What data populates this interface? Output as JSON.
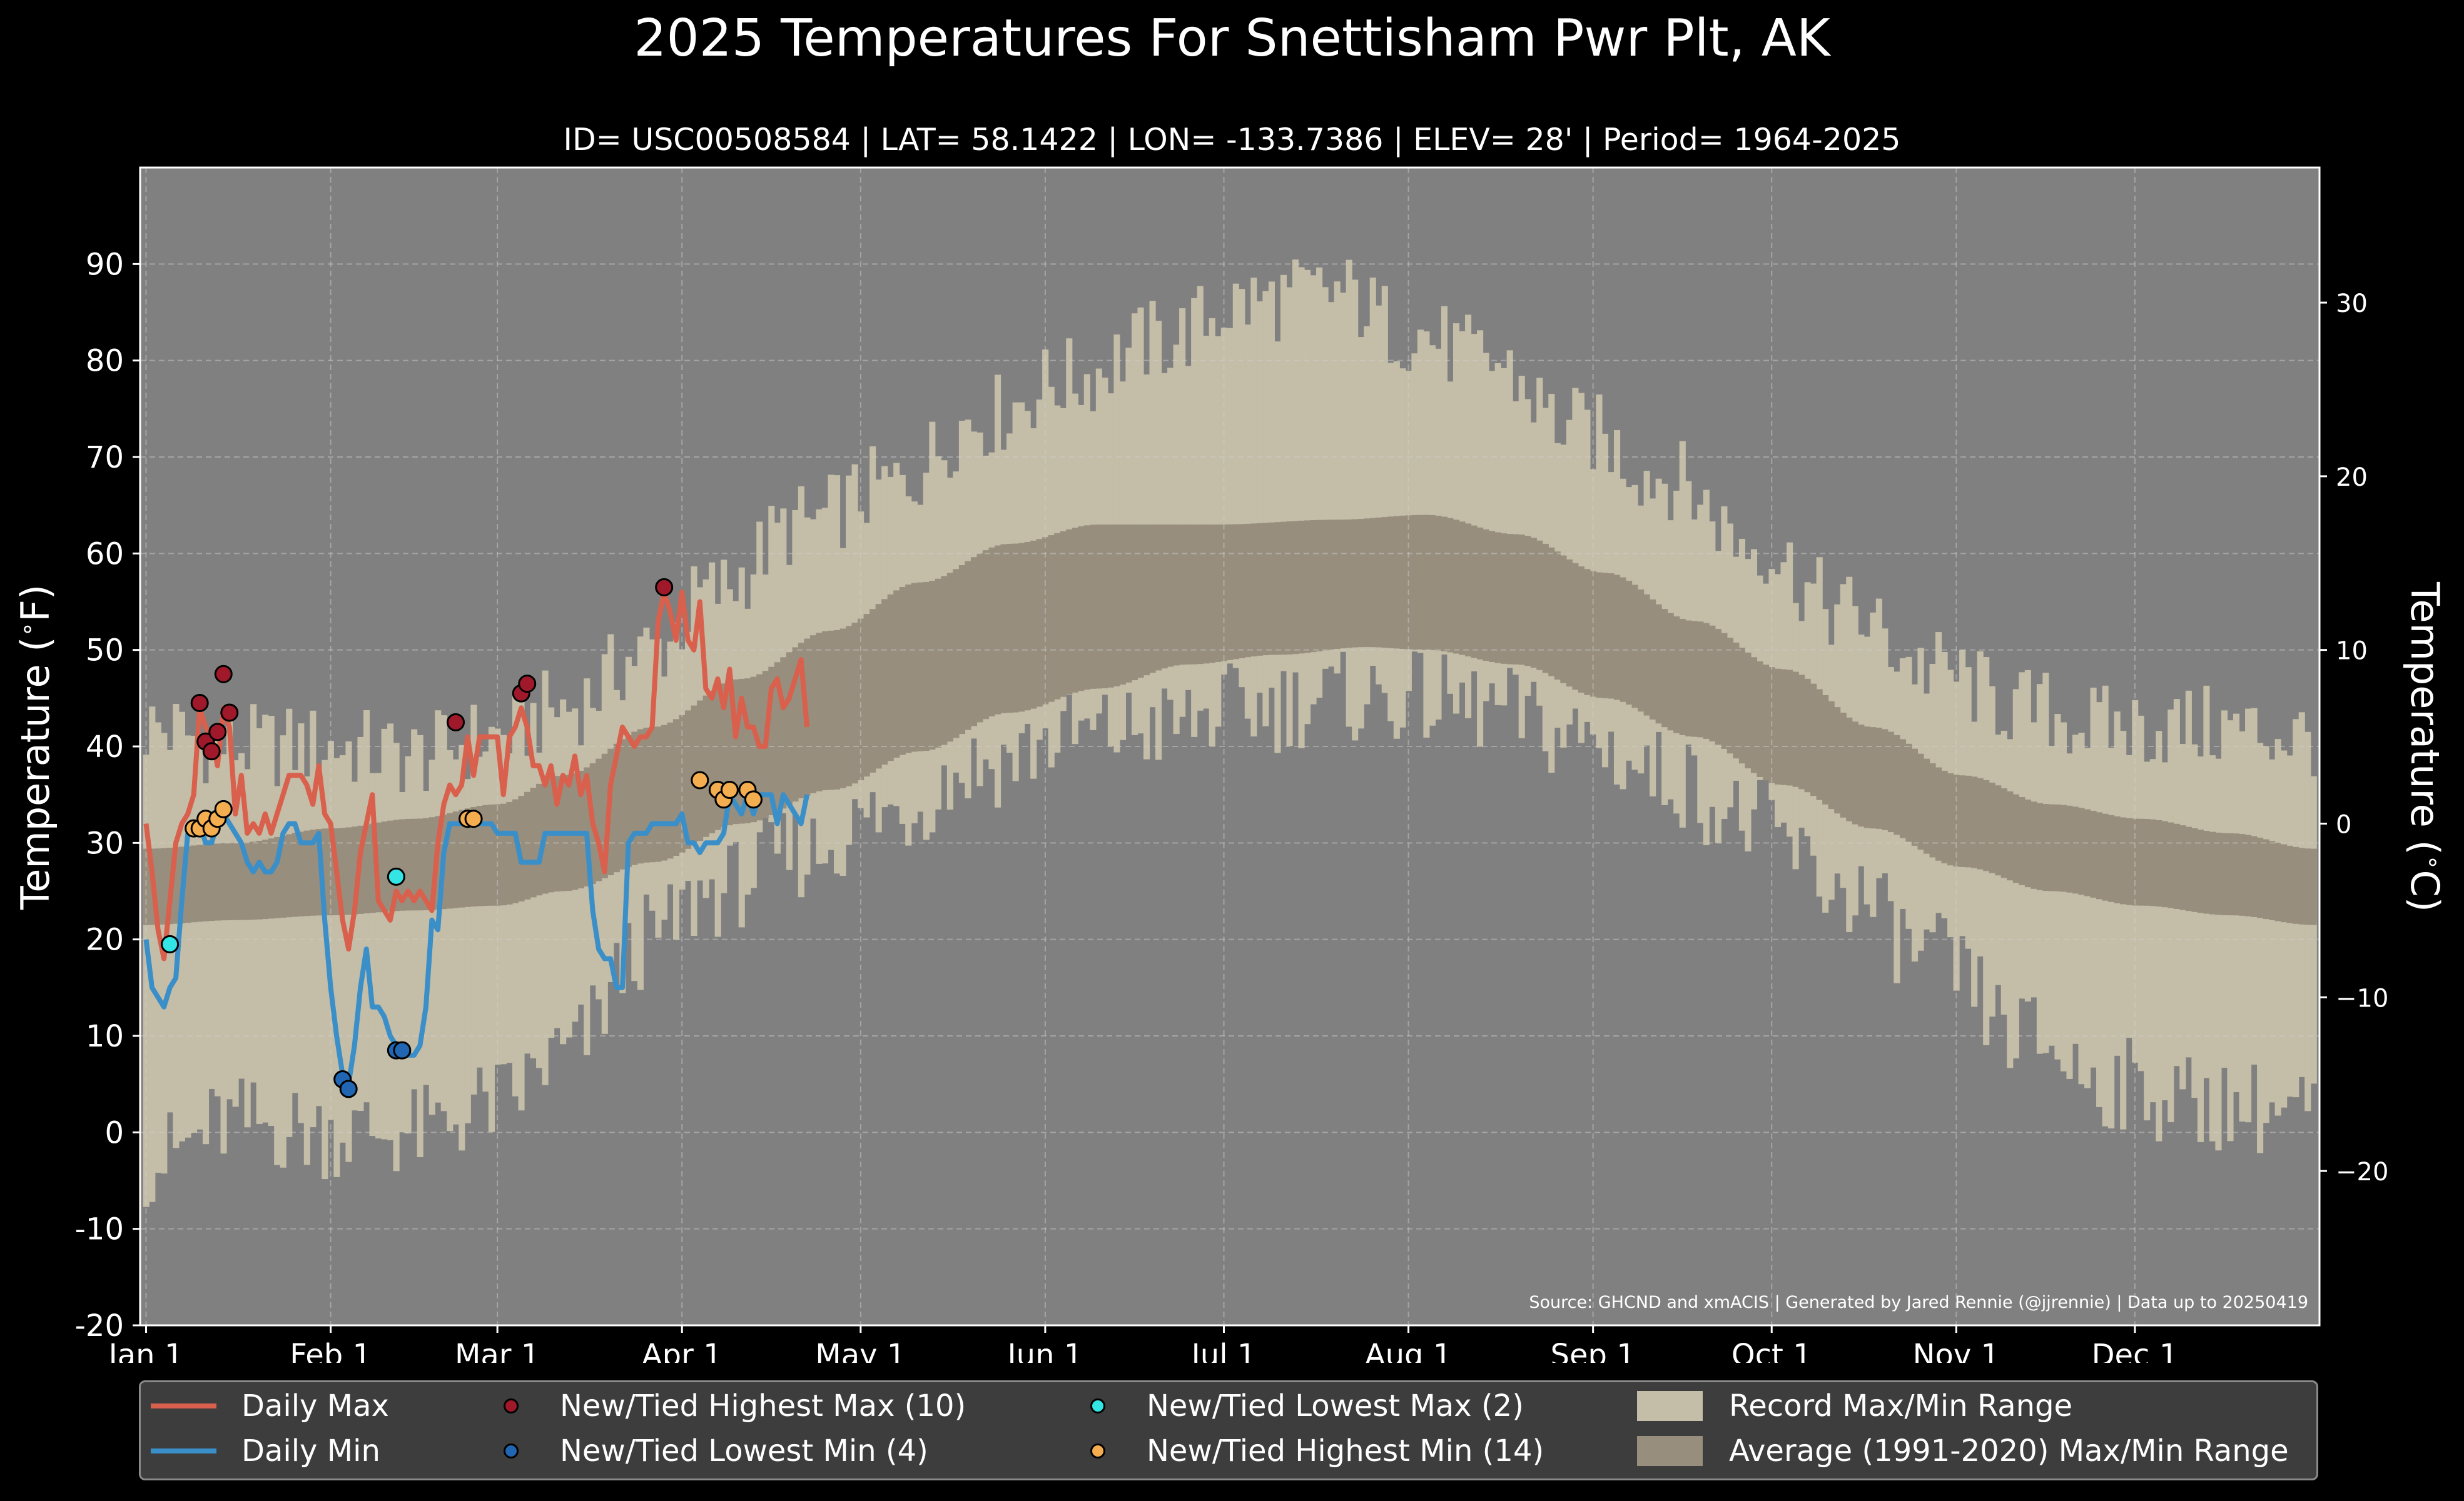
{
  "header": {
    "title": "2025 Temperatures For Snettisham Pwr Plt, AK",
    "subtitle": "ID= USC00508584 | LAT= 58.1422 | LON= -133.7386 | ELEV= 28' | Period= 1964-2025"
  },
  "source_note": "Source: GHCND and xmACIS | Generated by Jared Rennie (@jjrennie) | Data up to 20250419",
  "legend": {
    "daily_max": "Daily Max",
    "daily_min": "Daily Min",
    "highest_max": "New/Tied Highest Max (10)",
    "lowest_min": "New/Tied Lowest Min (4)",
    "lowest_max": "New/Tied Lowest Max (2)",
    "highest_min": "New/Tied Highest Min (14)",
    "record_range": "Record Max/Min Range",
    "average_range": "Average (1991-2020) Max/Min Range"
  },
  "colors": {
    "background": "#000000",
    "plot_bg": "#808080",
    "record_band": "#c4bda7",
    "average_band": "#978e7e",
    "daily_max": "#d9604c",
    "daily_min": "#3a8fc9",
    "highest_max": "#a0192b",
    "lowest_min": "#2066b3",
    "lowest_max": "#33e5e5",
    "highest_min": "#f5ae4f"
  },
  "chart_data": {
    "type": "line",
    "ylabel": "Temperature ($^\\circ$F)",
    "ylabel_right": "Temperature ($^\\circ$C)",
    "ylim": [
      -20,
      100
    ],
    "yticks": [
      -20,
      -10,
      0,
      10,
      20,
      30,
      40,
      50,
      60,
      70,
      80,
      90
    ],
    "y2ticks": [
      -20,
      -10,
      0,
      10,
      20,
      30
    ],
    "xlim": [
      -1,
      365
    ],
    "xticks": [
      {
        "day": 0,
        "label": "Jan 1"
      },
      {
        "day": 31,
        "label": "Feb 1"
      },
      {
        "day": 59,
        "label": "Mar 1"
      },
      {
        "day": 90,
        "label": "Apr 1"
      },
      {
        "day": 120,
        "label": "May 1"
      },
      {
        "day": 151,
        "label": "Jun 1"
      },
      {
        "day": 181,
        "label": "Jul 1"
      },
      {
        "day": 212,
        "label": "Aug 1"
      },
      {
        "day": 243,
        "label": "Sep 1"
      },
      {
        "day": 273,
        "label": "Oct 1"
      },
      {
        "day": 304,
        "label": "Nov 1"
      },
      {
        "day": 334,
        "label": "Dec 1"
      }
    ],
    "grid": true,
    "legend_position": "bottom",
    "series": [
      {
        "name": "Daily Max",
        "x_start": 0,
        "values": [
          32,
          27,
          21,
          18,
          24,
          30,
          32,
          33,
          35,
          44,
          42,
          41,
          38,
          44,
          42,
          33,
          37,
          31,
          32,
          31,
          33,
          31,
          33,
          35,
          37,
          37,
          37,
          36,
          34,
          38,
          33,
          32,
          27,
          22,
          19,
          23,
          29,
          32,
          35,
          24,
          23,
          22,
          25,
          24,
          25,
          24,
          25,
          24,
          23,
          30,
          34,
          36,
          35,
          36,
          41,
          37,
          41,
          41,
          41,
          41,
          35,
          41,
          42,
          44,
          42,
          38,
          38,
          36,
          38,
          34,
          37,
          36,
          39,
          35,
          37,
          32,
          30,
          27,
          36,
          39,
          42,
          41,
          40,
          41,
          41,
          42,
          53,
          56,
          54,
          51,
          56,
          51,
          50,
          55,
          46,
          45,
          47,
          44,
          48,
          41,
          45,
          42,
          42,
          40,
          40,
          46,
          47,
          44,
          45,
          47,
          49,
          42
        ]
      },
      {
        "name": "Daily Min",
        "x_start": 0,
        "values": [
          20,
          15,
          14,
          13,
          15,
          16,
          24,
          31,
          32,
          32,
          30,
          30,
          32,
          33,
          32,
          31,
          30,
          28,
          27,
          28,
          27,
          27,
          28,
          31,
          32,
          32,
          30,
          30,
          30,
          31,
          22,
          15,
          10,
          6,
          5,
          9,
          15,
          19,
          13,
          13,
          12,
          10,
          9,
          9,
          8,
          8,
          9,
          13,
          22,
          21,
          29,
          32,
          32,
          32,
          32,
          32,
          32,
          32,
          32,
          31,
          31,
          31,
          31,
          28,
          28,
          28,
          28,
          31,
          31,
          31,
          31,
          31,
          31,
          31,
          31,
          23,
          19,
          18,
          18,
          15,
          15,
          30,
          31,
          31,
          31,
          32,
          32,
          32,
          32,
          32,
          33,
          30,
          30,
          29,
          30,
          30,
          30,
          31,
          35,
          34,
          33,
          35,
          33,
          35,
          35,
          35,
          32,
          35,
          34,
          33,
          32,
          35
        ]
      }
    ],
    "markers": {
      "highest_max": [
        {
          "x": 9,
          "y": 44.5
        },
        {
          "x": 10,
          "y": 40.5
        },
        {
          "x": 11,
          "y": 39.5
        },
        {
          "x": 12,
          "y": 41.5
        },
        {
          "x": 13,
          "y": 47.5
        },
        {
          "x": 14,
          "y": 43.5
        },
        {
          "x": 52,
          "y": 42.5
        },
        {
          "x": 63,
          "y": 45.5
        },
        {
          "x": 64,
          "y": 46.5
        },
        {
          "x": 87,
          "y": 56.5
        }
      ],
      "lowest_min": [
        {
          "x": 33,
          "y": 5.5
        },
        {
          "x": 34,
          "y": 4.5
        },
        {
          "x": 42,
          "y": 8.5
        },
        {
          "x": 43,
          "y": 8.5
        }
      ],
      "lowest_max": [
        {
          "x": 4,
          "y": 19.5
        },
        {
          "x": 42,
          "y": 26.5
        }
      ],
      "highest_min": [
        {
          "x": 8,
          "y": 31.5
        },
        {
          "x": 9,
          "y": 31.5
        },
        {
          "x": 10,
          "y": 32.5
        },
        {
          "x": 11,
          "y": 31.5
        },
        {
          "x": 12,
          "y": 32.5
        },
        {
          "x": 13,
          "y": 33.5
        },
        {
          "x": 54,
          "y": 32.5
        },
        {
          "x": 55,
          "y": 32.5
        },
        {
          "x": 93,
          "y": 36.5
        },
        {
          "x": 96,
          "y": 35.5
        },
        {
          "x": 97,
          "y": 34.5
        },
        {
          "x": 98,
          "y": 35.5
        },
        {
          "x": 101,
          "y": 35.5
        },
        {
          "x": 102,
          "y": 34.5
        }
      ]
    },
    "record_max_knots": [
      [
        0,
        42
      ],
      [
        15,
        40
      ],
      [
        31,
        40
      ],
      [
        45,
        39
      ],
      [
        59,
        41
      ],
      [
        70,
        44
      ],
      [
        85,
        50
      ],
      [
        95,
        56
      ],
      [
        110,
        63
      ],
      [
        125,
        67
      ],
      [
        140,
        74
      ],
      [
        155,
        78
      ],
      [
        170,
        82
      ],
      [
        185,
        86
      ],
      [
        200,
        87
      ],
      [
        212,
        83
      ],
      [
        225,
        80
      ],
      [
        240,
        73
      ],
      [
        255,
        68
      ],
      [
        270,
        61
      ],
      [
        285,
        54
      ],
      [
        300,
        48
      ],
      [
        315,
        44
      ],
      [
        330,
        42
      ],
      [
        345,
        42
      ],
      [
        364,
        41
      ]
    ],
    "record_min_knots": [
      [
        0,
        -3
      ],
      [
        15,
        1
      ],
      [
        31,
        0
      ],
      [
        45,
        0
      ],
      [
        59,
        3
      ],
      [
        70,
        8
      ],
      [
        85,
        20
      ],
      [
        95,
        25
      ],
      [
        110,
        29
      ],
      [
        125,
        33
      ],
      [
        140,
        38
      ],
      [
        155,
        41
      ],
      [
        170,
        42
      ],
      [
        185,
        44
      ],
      [
        200,
        45
      ],
      [
        212,
        45
      ],
      [
        225,
        44
      ],
      [
        240,
        41
      ],
      [
        255,
        37
      ],
      [
        270,
        32
      ],
      [
        285,
        25
      ],
      [
        300,
        18
      ],
      [
        315,
        10
      ],
      [
        330,
        5
      ],
      [
        345,
        3
      ],
      [
        364,
        2
      ]
    ],
    "average_max_knots": [
      [
        0,
        29.4
      ],
      [
        15,
        30
      ],
      [
        31,
        31.5
      ],
      [
        45,
        32.5
      ],
      [
        59,
        34
      ],
      [
        70,
        37
      ],
      [
        85,
        42
      ],
      [
        100,
        47
      ],
      [
        115,
        52
      ],
      [
        130,
        57
      ],
      [
        145,
        61
      ],
      [
        160,
        63
      ],
      [
        180,
        63
      ],
      [
        200,
        63.5
      ],
      [
        215,
        64
      ],
      [
        230,
        62
      ],
      [
        245,
        58
      ],
      [
        260,
        53
      ],
      [
        275,
        48
      ],
      [
        290,
        42
      ],
      [
        305,
        37
      ],
      [
        320,
        34
      ],
      [
        335,
        32.5
      ],
      [
        350,
        31
      ],
      [
        364,
        29.4
      ]
    ],
    "average_min_knots": [
      [
        0,
        21.5
      ],
      [
        15,
        22
      ],
      [
        31,
        22.5
      ],
      [
        45,
        23
      ],
      [
        59,
        23.5
      ],
      [
        70,
        25
      ],
      [
        85,
        28
      ],
      [
        100,
        32
      ],
      [
        115,
        35.5
      ],
      [
        130,
        39.5
      ],
      [
        145,
        43.5
      ],
      [
        160,
        46
      ],
      [
        175,
        48.5
      ],
      [
        190,
        49.5
      ],
      [
        205,
        50.3
      ],
      [
        215,
        50
      ],
      [
        230,
        48.5
      ],
      [
        245,
        45
      ],
      [
        260,
        41
      ],
      [
        275,
        36
      ],
      [
        290,
        31.5
      ],
      [
        305,
        27.5
      ],
      [
        320,
        25
      ],
      [
        335,
        23.5
      ],
      [
        350,
        22.5
      ],
      [
        364,
        21.5
      ]
    ]
  }
}
